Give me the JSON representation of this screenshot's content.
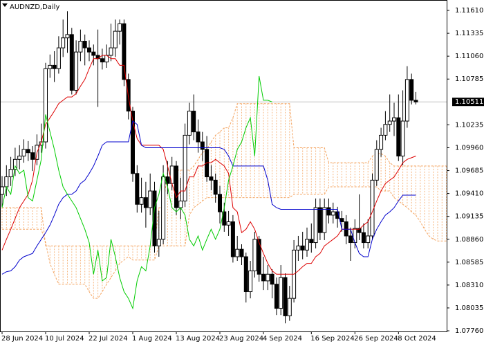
{
  "chart_data": {
    "type": "candlestick",
    "title": "AUDNZD,Daily",
    "categories": [
      "28 Jun 2024",
      null,
      null,
      null,
      null,
      null,
      null,
      null,
      null,
      null,
      "10 Jul 2024",
      null,
      null,
      null,
      null,
      null,
      null,
      null,
      null,
      null,
      "22 Jul 2024",
      null,
      null,
      null,
      null,
      null,
      null,
      null,
      null,
      null,
      "1 Aug 2024",
      null,
      null,
      null,
      null,
      null,
      null,
      null,
      null,
      null,
      "13 Aug 2024",
      null,
      null,
      null,
      null,
      null,
      null,
      null,
      null,
      null,
      "23 Aug 2024",
      null,
      null,
      null,
      null,
      null,
      null,
      null,
      null,
      null,
      "4 Sep 2024",
      null,
      null,
      null,
      null,
      null,
      null,
      null,
      null,
      null,
      null,
      "16 Sep 2024",
      null,
      null,
      null,
      null,
      null,
      null,
      null,
      null,
      null,
      "26 Sep 2024",
      null,
      null,
      null,
      null,
      null,
      null,
      null,
      null,
      null,
      "8 Oct 2024",
      null,
      null,
      null,
      null,
      null,
      null,
      null,
      null,
      null,
      null,
      null
    ],
    "open": [
      1.094,
      1.0949,
      1.0961,
      1.097,
      1.0982,
      1.0986,
      1.0994,
      1.099,
      1.0982,
      1.0999,
      1.1003,
      1.1091,
      1.1095,
      1.1091,
      1.1116,
      1.1128,
      1.1132,
      1.1065,
      1.1111,
      1.1124,
      1.1116,
      1.1111,
      1.1107,
      1.1103,
      1.1099,
      1.1107,
      1.1116,
      1.1136,
      1.1145,
      1.1078,
      1.104,
      1.0965,
      1.0928,
      1.0936,
      1.0924,
      1.0944,
      1.0878,
      1.0886,
      1.0961,
      1.0953,
      1.0974,
      1.0924,
      1.0932,
      1.1011,
      1.104,
      1.1015,
      1.1003,
      1.0994,
      1.0961,
      1.0957,
      1.094,
      1.0919,
      1.0903,
      1.0907,
      1.0865,
      1.0874,
      1.0865,
      1.0823,
      1.0848,
      1.0886,
      1.0844,
      1.0836,
      1.0844,
      1.0832,
      1.0803,
      1.084,
      1.0794,
      1.0815,
      1.0873,
      1.0878,
      1.0873,
      1.0886,
      1.0882,
      1.0924,
      1.0894,
      1.0924,
      1.0915,
      1.0919,
      1.0911,
      1.0907,
      1.089,
      1.0882,
      1.0899,
      1.0894,
      1.0882,
      1.089,
      1.0957,
      1.0994,
      1.1011,
      1.1024,
      1.1028,
      1.1032,
      1.0986,
      1.1028,
      1.1078,
      1.1053,
      null,
      null,
      null,
      null,
      null,
      null,
      null
    ],
    "high": [
      1.0962,
      1.0975,
      1.0985,
      1.0996,
      1.0999,
      1.1006,
      1.1004,
      1.0998,
      1.1012,
      1.1025,
      1.1098,
      1.1108,
      1.1112,
      1.113,
      1.115,
      1.116,
      1.114,
      1.1125,
      1.1138,
      1.1132,
      1.1125,
      1.112,
      1.1138,
      1.1115,
      1.112,
      1.1145,
      1.115,
      1.115,
      1.115,
      1.1085,
      1.1045,
      1.0975,
      1.096,
      1.0955,
      1.0965,
      1.0955,
      1.092,
      1.0975,
      1.098,
      1.0985,
      1.098,
      1.096,
      1.1025,
      1.105,
      1.106,
      1.103,
      1.1015,
      1.101,
      1.0975,
      1.0965,
      1.095,
      1.093,
      1.092,
      1.0915,
      1.089,
      1.088,
      1.087,
      1.086,
      1.0895,
      1.089,
      1.0865,
      1.0855,
      1.085,
      1.084,
      1.0855,
      1.0845,
      1.083,
      1.0885,
      1.089,
      1.0895,
      1.09,
      1.0905,
      1.0935,
      1.0935,
      1.0935,
      1.0935,
      1.093,
      1.0925,
      1.092,
      1.0915,
      1.09,
      1.091,
      1.094,
      1.0905,
      1.091,
      1.0965,
      1.1005,
      1.102,
      1.104,
      1.106,
      1.105,
      1.106,
      1.1065,
      1.1094,
      1.1085,
      1.1063,
      null,
      null,
      null,
      null,
      null,
      null,
      null
    ],
    "low": [
      1.0925,
      1.0938,
      1.095,
      1.0962,
      1.097,
      1.0978,
      1.098,
      1.0968,
      1.0975,
      1.099,
      1.0995,
      1.108,
      1.1075,
      1.1085,
      1.1105,
      1.111,
      1.106,
      1.106,
      1.11,
      1.1095,
      1.11,
      1.1095,
      1.1045,
      1.109,
      1.1092,
      1.11,
      1.1105,
      1.112,
      1.107,
      1.103,
      1.0955,
      1.0918,
      1.0918,
      1.09,
      1.0915,
      1.087,
      1.0865,
      1.088,
      1.094,
      1.0945,
      1.0915,
      1.091,
      1.0925,
      1.1,
      1.1005,
      1.099,
      1.098,
      1.0955,
      1.0945,
      1.093,
      1.0905,
      1.0895,
      1.089,
      1.0858,
      1.086,
      1.0855,
      1.081,
      1.0815,
      1.084,
      1.0835,
      1.0825,
      1.0825,
      1.0815,
      1.0795,
      1.0795,
      1.0785,
      1.0788,
      1.081,
      1.086,
      1.0862,
      1.0865,
      1.087,
      1.0875,
      1.0885,
      1.0885,
      1.0905,
      1.0905,
      1.09,
      1.0895,
      1.088,
      1.086,
      1.0875,
      1.0885,
      1.0875,
      1.0875,
      1.0885,
      1.095,
      1.0985,
      1.1005,
      1.1015,
      1.101,
      1.098,
      1.0975,
      1.102,
      1.1048,
      1.1048,
      null,
      null,
      null,
      null,
      null,
      null,
      null
    ],
    "close": [
      1.0949,
      1.0961,
      1.097,
      1.0982,
      1.0986,
      1.0994,
      1.099,
      1.0982,
      1.0999,
      1.1003,
      1.1091,
      1.1095,
      1.1091,
      1.1116,
      1.1128,
      1.1132,
      1.1065,
      1.1111,
      1.1124,
      1.1116,
      1.1111,
      1.1107,
      1.1103,
      1.1099,
      1.1107,
      1.1116,
      1.1136,
      1.1145,
      1.1078,
      1.104,
      1.0965,
      1.0928,
      1.0936,
      1.0924,
      1.0944,
      1.0878,
      1.0886,
      1.0961,
      1.0953,
      1.0974,
      1.0924,
      1.0932,
      1.1011,
      1.104,
      1.1015,
      1.1003,
      1.0994,
      1.0961,
      1.0957,
      1.094,
      1.0919,
      1.0903,
      1.0907,
      1.0865,
      1.0874,
      1.0865,
      1.0823,
      1.0848,
      1.0886,
      1.0844,
      1.0836,
      1.0844,
      1.0832,
      1.0803,
      1.084,
      1.0794,
      1.0815,
      1.0873,
      1.0878,
      1.0873,
      1.0886,
      1.0882,
      1.0924,
      1.0894,
      1.0924,
      1.0915,
      1.0919,
      1.0911,
      1.0907,
      1.089,
      1.0882,
      1.0899,
      1.0894,
      1.0882,
      1.089,
      1.0957,
      1.0994,
      1.1011,
      1.1024,
      1.1028,
      1.1032,
      1.0986,
      1.1028,
      1.1078,
      1.1053,
      1.1051,
      null,
      null,
      null,
      null,
      null,
      null,
      null
    ],
    "up_color": "#ffffff",
    "down_color": "#000000",
    "lines": [
      {
        "color": "#dd0000",
        "values": [
          1.0873,
          1.0886,
          1.0898,
          1.0911,
          1.0924,
          1.0932,
          1.094,
          1.0957,
          1.099,
          1.1003,
          1.1024,
          1.1032,
          1.104,
          1.1049,
          1.1053,
          1.1057,
          1.1057,
          1.1061,
          1.107,
          1.1078,
          1.1091,
          1.1103,
          1.1103,
          1.1107,
          1.1107,
          1.1103,
          1.1103,
          1.1095,
          1.1095,
          1.1057,
          1.1028,
          1.1007,
          1.0999,
          1.0999,
          1.0999,
          1.0999,
          1.0999,
          1.0994,
          1.0974,
          1.0953,
          1.0936,
          1.0944,
          1.0944,
          1.0961,
          1.0961,
          1.0974,
          1.0974,
          1.0978,
          1.0978,
          1.0982,
          1.0978,
          1.0974,
          1.0965,
          1.0924,
          1.0919,
          1.0894,
          1.0898,
          1.0907,
          1.0898,
          1.0882,
          1.0869,
          1.0857,
          1.0848,
          1.0844,
          1.0844,
          1.0844,
          1.0844,
          1.0844,
          1.0848,
          1.0853,
          1.0857,
          1.0857,
          1.0865,
          1.0869,
          1.0878,
          1.0882,
          1.0886,
          1.089,
          1.0898,
          1.0898,
          1.0898,
          1.0898,
          1.0898,
          1.0903,
          1.0907,
          1.0919,
          1.0932,
          1.0944,
          1.0953,
          1.0957,
          1.0961,
          1.0969,
          1.0978,
          1.0982,
          1.0984,
          1.0986,
          null,
          null,
          null,
          null,
          null,
          null,
          null
        ]
      },
      {
        "color": "#0000cc",
        "values": [
          1.0844,
          1.0847,
          1.0848,
          1.0853,
          1.0861,
          1.0865,
          1.0867,
          1.0869,
          1.0878,
          1.0886,
          1.0894,
          1.0903,
          1.0915,
          1.0928,
          1.0936,
          1.094,
          1.094,
          1.0944,
          1.0953,
          1.0957,
          1.0965,
          1.0974,
          1.0986,
          1.0999,
          1.1003,
          1.1003,
          1.1003,
          1.1003,
          1.1003,
          1.1003,
          1.1028,
          1.1024,
          1.0999,
          1.0996,
          1.0996,
          1.0996,
          1.0996,
          1.0996,
          1.0996,
          1.0996,
          1.0996,
          1.0996,
          1.0996,
          1.0996,
          1.0996,
          1.0996,
          1.0996,
          1.0996,
          1.0996,
          1.0996,
          1.0996,
          1.0994,
          1.0986,
          1.0974,
          1.0974,
          1.0974,
          1.0974,
          1.0974,
          1.0974,
          1.0974,
          1.0974,
          1.0957,
          1.0928,
          1.0924,
          1.0922,
          1.0922,
          1.0922,
          1.0922,
          1.0922,
          1.0922,
          1.0922,
          1.0922,
          1.0922,
          1.0922,
          1.0922,
          1.0922,
          1.0922,
          1.0922,
          1.0898,
          1.0898,
          1.0898,
          1.0882,
          1.0869,
          1.0865,
          1.0865,
          1.0886,
          1.0898,
          1.0907,
          1.0915,
          1.0919,
          1.0924,
          1.0932,
          1.0939,
          1.0939,
          1.0939,
          1.0939,
          null,
          null,
          null,
          null,
          null,
          null,
          null
        ]
      },
      {
        "color": "#00cc00",
        "values": [
          1.0924,
          1.0949,
          1.094,
          1.0974,
          1.0965,
          1.0969,
          1.0936,
          1.0932,
          1.0957,
          1.0982,
          1.1036,
          1.1015,
          1.0994,
          1.0969,
          1.0949,
          1.094,
          1.0932,
          1.0924,
          1.0911,
          1.0898,
          1.0882,
          1.0844,
          1.0873,
          1.0836,
          1.084,
          1.0886,
          1.0865,
          1.084,
          1.0823,
          1.0815,
          1.0803,
          1.0836,
          1.0853,
          1.0848,
          1.0878,
          1.0924,
          1.094,
          1.0965,
          1.0949,
          1.0924,
          1.0919,
          1.0924,
          1.0915,
          1.0886,
          1.0878,
          1.089,
          1.0873,
          1.0886,
          1.0898,
          1.0886,
          1.0898,
          1.0924,
          1.0957,
          1.0974,
          1.0994,
          1.1003,
          1.102,
          1.1032,
          1.0986,
          1.1082,
          1.1053,
          1.1053,
          1.1051,
          null,
          null,
          null,
          null,
          null,
          null,
          null,
          null,
          null,
          null,
          null,
          null,
          null,
          null,
          null,
          null,
          null,
          null,
          null,
          null,
          null,
          null,
          null,
          null,
          null,
          null,
          null,
          null,
          null,
          null,
          null,
          null,
          null,
          null,
          null,
          null,
          null,
          null,
          null,
          null
        ]
      }
    ],
    "cloud": {
      "color": "#f4a460",
      "span_a": [
        1.0924,
        1.0924,
        1.0924,
        1.0924,
        1.0924,
        1.0924,
        1.0924,
        1.0924,
        1.0924,
        1.0924,
        1.0878,
        1.0878,
        1.0878,
        1.0878,
        1.0878,
        1.0878,
        1.0878,
        1.0878,
        1.0878,
        1.0878,
        1.0878,
        1.0878,
        1.0878,
        1.0878,
        1.0878,
        1.0878,
        1.0878,
        1.0878,
        1.0878,
        1.0878,
        1.0878,
        1.0878,
        1.0878,
        1.0878,
        1.0878,
        1.0878,
        1.0924,
        1.0924,
        1.0969,
        1.0969,
        1.0969,
        1.0969,
        1.0969,
        1.0969,
        1.0974,
        1.0982,
        1.099,
        1.0994,
        1.1003,
        1.1011,
        1.1015,
        1.102,
        1.102,
        1.1032,
        1.1049,
        1.1049,
        1.1049,
        1.1049,
        1.1049,
        1.1049,
        1.1049,
        1.1049,
        1.1049,
        1.1049,
        1.1049,
        1.1049,
        1.1049,
        1.0996,
        1.0996,
        1.0996,
        1.0996,
        1.0996,
        1.0996,
        1.0996,
        1.0996,
        1.0978,
        1.0978,
        1.0978,
        1.0978,
        1.0978,
        1.0978,
        1.0978,
        1.0978,
        1.0978,
        1.0978,
        1.0986,
        1.0989,
        1.0989,
        1.0986,
        1.0978,
        1.0974,
        1.0974,
        1.0974,
        1.0974,
        1.0974,
        1.0974,
        1.0974,
        1.0974,
        1.0974,
        1.0974,
        1.0974,
        1.0974,
        1.0974
      ],
      "span_b": [
        1.0898,
        1.0898,
        1.0898,
        1.0898,
        1.0898,
        1.0898,
        1.0898,
        1.0898,
        1.0898,
        1.0898,
        1.0882,
        1.0857,
        1.0844,
        1.0832,
        1.0832,
        1.0832,
        1.0832,
        1.0832,
        1.0832,
        1.0832,
        1.0823,
        1.0815,
        1.0815,
        1.0823,
        1.0832,
        1.084,
        1.0848,
        1.0857,
        1.0861,
        1.0865,
        1.0861,
        1.0861,
        1.0861,
        1.0861,
        1.0861,
        1.0861,
        1.0878,
        1.0878,
        1.0878,
        1.0878,
        1.0878,
        1.0878,
        1.0878,
        1.0915,
        1.0924,
        1.0928,
        1.0932,
        1.0936,
        1.0936,
        1.0936,
        1.0936,
        1.0936,
        1.0936,
        1.0936,
        1.0936,
        1.0936,
        1.0936,
        1.0936,
        1.0936,
        1.0936,
        1.0936,
        1.0936,
        1.0936,
        1.0936,
        1.0936,
        1.0936,
        1.0936,
        1.094,
        1.094,
        1.094,
        1.094,
        1.094,
        1.094,
        1.094,
        1.094,
        1.0949,
        1.0949,
        1.0949,
        1.0949,
        1.0949,
        1.0949,
        1.0949,
        1.0949,
        1.0949,
        1.0949,
        1.0949,
        1.0949,
        1.0944,
        1.0944,
        1.0944,
        1.0936,
        1.0932,
        1.0928,
        1.0924,
        1.0919,
        1.0915,
        1.0907,
        1.0898,
        1.089,
        1.0886,
        1.0884,
        1.0884,
        1.0884
      ]
    },
    "current_price": {
      "value": 1.10511,
      "label": "1.10511"
    },
    "ylim": [
      1.07752,
      1.11735
    ],
    "yticks": [
      {
        "value": 1.1161,
        "label": "1.11610"
      },
      {
        "value": 1.11335,
        "label": "1.11335"
      },
      {
        "value": 1.1106,
        "label": "1.11060"
      },
      {
        "value": 1.10785,
        "label": "1.10785"
      },
      {
        "value": 1.10235,
        "label": "1.10235"
      },
      {
        "value": 1.0996,
        "label": "1.09960"
      },
      {
        "value": 1.09685,
        "label": "1.09685"
      },
      {
        "value": 1.0941,
        "label": "1.09410"
      },
      {
        "value": 1.09135,
        "label": "1.09135"
      },
      {
        "value": 1.0886,
        "label": "1.08860"
      },
      {
        "value": 1.08585,
        "label": "1.08585"
      },
      {
        "value": 1.0831,
        "label": "1.08310"
      },
      {
        "value": 1.08035,
        "label": "1.08035"
      },
      {
        "value": 1.0776,
        "label": "1.07760"
      }
    ]
  }
}
